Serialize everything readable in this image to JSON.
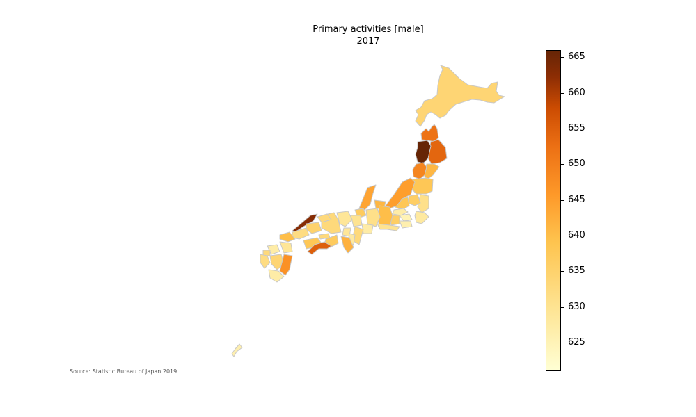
{
  "chart_data": {
    "type": "choropleth",
    "title_line1": "Primary activities [male]",
    "title_line2": "2017",
    "source": "Source: Statistic Bureau of Japan 2019",
    "colorbar": {
      "min": 621,
      "max": 666,
      "ticks": [
        "625",
        "630",
        "635",
        "640",
        "645",
        "650",
        "655",
        "660",
        "665"
      ],
      "tick_values": [
        625,
        630,
        635,
        640,
        645,
        650,
        655,
        660,
        665
      ],
      "colors": [
        "#ffffd4",
        "#fee391",
        "#fec44f",
        "#fe9929",
        "#ec7014",
        "#cc4c02",
        "#8c2d04",
        "#662506"
      ]
    },
    "regions": [
      {
        "name": "Hokkaido",
        "value": 634
      },
      {
        "name": "Aomori",
        "value": 652
      },
      {
        "name": "Iwate",
        "value": 654
      },
      {
        "name": "Miyagi",
        "value": 641
      },
      {
        "name": "Akita",
        "value": 666
      },
      {
        "name": "Yamagata",
        "value": 649
      },
      {
        "name": "Fukushima",
        "value": 638
      },
      {
        "name": "Ibaraki",
        "value": 631
      },
      {
        "name": "Tochigi",
        "value": 636
      },
      {
        "name": "Gunma",
        "value": 638
      },
      {
        "name": "Saitama",
        "value": 627
      },
      {
        "name": "Chiba",
        "value": 628
      },
      {
        "name": "Tokyo",
        "value": 625
      },
      {
        "name": "Kanagawa",
        "value": 626
      },
      {
        "name": "Niigata",
        "value": 645
      },
      {
        "name": "Toyama",
        "value": 641
      },
      {
        "name": "Ishikawa",
        "value": 644
      },
      {
        "name": "Fukui",
        "value": 637
      },
      {
        "name": "Yamanashi",
        "value": 636
      },
      {
        "name": "Nagano",
        "value": 640
      },
      {
        "name": "Gifu",
        "value": 631
      },
      {
        "name": "Shizuoka",
        "value": 630
      },
      {
        "name": "Aichi",
        "value": 627
      },
      {
        "name": "Mie",
        "value": 633
      },
      {
        "name": "Shiga",
        "value": 630
      },
      {
        "name": "Kyoto",
        "value": 629
      },
      {
        "name": "Osaka",
        "value": 629
      },
      {
        "name": "Hyogo",
        "value": 633
      },
      {
        "name": "Nara",
        "value": 628
      },
      {
        "name": "Wakayama",
        "value": 642
      },
      {
        "name": "Tottori",
        "value": 633
      },
      {
        "name": "Shimane",
        "value": 663
      },
      {
        "name": "Okayama",
        "value": 635
      },
      {
        "name": "Hiroshima",
        "value": 632
      },
      {
        "name": "Yamaguchi",
        "value": 640
      },
      {
        "name": "Tokushima",
        "value": 637
      },
      {
        "name": "Kagawa",
        "value": 633
      },
      {
        "name": "Ehime",
        "value": 638
      },
      {
        "name": "Kochi",
        "value": 655
      },
      {
        "name": "Fukuoka",
        "value": 627
      },
      {
        "name": "Saga",
        "value": 633
      },
      {
        "name": "Nagasaki",
        "value": 632
      },
      {
        "name": "Kumamoto",
        "value": 634
      },
      {
        "name": "Oita",
        "value": 629
      },
      {
        "name": "Miyazaki",
        "value": 647
      },
      {
        "name": "Kagoshima",
        "value": 627
      },
      {
        "name": "Okinawa",
        "value": 626
      }
    ]
  }
}
